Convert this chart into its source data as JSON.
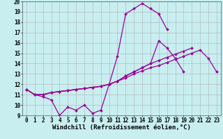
{
  "x_hours": [
    0,
    1,
    2,
    3,
    4,
    5,
    6,
    7,
    8,
    9,
    10,
    11,
    12,
    13,
    14,
    15,
    16,
    17,
    18,
    19,
    20,
    21,
    22,
    23
  ],
  "line_zigzag": [
    11.5,
    11.0,
    10.8,
    10.5,
    9.0,
    9.8,
    9.5,
    10.0,
    9.2,
    9.5,
    12.0,
    14.7,
    18.8,
    19.3,
    19.8,
    19.3,
    18.8,
    17.3,
    null,
    null,
    null,
    null,
    null,
    null
  ],
  "line_upper": [
    11.5,
    11.0,
    11.0,
    11.2,
    11.3,
    11.4,
    11.5,
    11.6,
    11.7,
    11.8,
    12.0,
    12.3,
    12.8,
    13.2,
    13.6,
    14.0,
    16.2,
    15.5,
    14.5,
    13.2,
    null,
    null,
    null,
    null
  ],
  "line_mid": [
    11.5,
    11.0,
    11.0,
    11.2,
    11.3,
    11.4,
    11.5,
    11.6,
    11.7,
    11.8,
    12.0,
    12.3,
    12.8,
    13.2,
    13.6,
    14.0,
    14.3,
    14.6,
    14.9,
    15.2,
    15.5,
    null,
    null,
    null
  ],
  "line_lower": [
    11.5,
    11.0,
    11.0,
    11.2,
    11.3,
    11.4,
    11.5,
    11.6,
    11.7,
    11.8,
    12.0,
    12.3,
    12.6,
    13.0,
    13.3,
    13.6,
    13.8,
    14.1,
    14.4,
    14.7,
    15.0,
    15.3,
    14.5,
    13.2
  ],
  "ylim": [
    9,
    20
  ],
  "yticks": [
    9,
    10,
    11,
    12,
    13,
    14,
    15,
    16,
    17,
    18,
    19,
    20
  ],
  "xticks": [
    0,
    1,
    2,
    3,
    4,
    5,
    6,
    7,
    8,
    9,
    10,
    11,
    12,
    13,
    14,
    15,
    16,
    17,
    18,
    19,
    20,
    21,
    22,
    23
  ],
  "line_color": "#990099",
  "bg_color": "#c8eef0",
  "grid_color": "#b0b0b0",
  "xlabel": "Windchill (Refroidissement éolien,°C)",
  "xlabel_fontsize": 6.5,
  "tick_fontsize": 5.5
}
